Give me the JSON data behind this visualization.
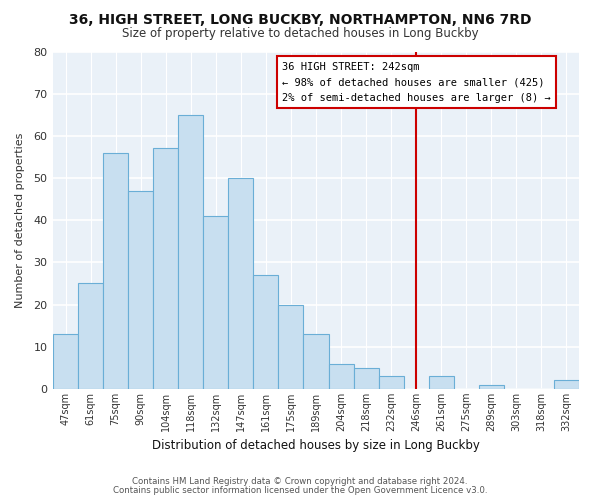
{
  "title": "36, HIGH STREET, LONG BUCKBY, NORTHAMPTON, NN6 7RD",
  "subtitle": "Size of property relative to detached houses in Long Buckby",
  "xlabel": "Distribution of detached houses by size in Long Buckby",
  "ylabel": "Number of detached properties",
  "bar_labels": [
    "47sqm",
    "61sqm",
    "75sqm",
    "90sqm",
    "104sqm",
    "118sqm",
    "132sqm",
    "147sqm",
    "161sqm",
    "175sqm",
    "189sqm",
    "204sqm",
    "218sqm",
    "232sqm",
    "246sqm",
    "261sqm",
    "275sqm",
    "289sqm",
    "303sqm",
    "318sqm",
    "332sqm"
  ],
  "bar_heights": [
    13,
    25,
    56,
    47,
    57,
    65,
    41,
    50,
    27,
    20,
    13,
    6,
    5,
    3,
    0,
    3,
    0,
    1,
    0,
    0,
    2
  ],
  "bar_color": "#c8dff0",
  "bar_edge_color": "#6aaed6",
  "ylim": [
    0,
    80
  ],
  "yticks": [
    0,
    10,
    20,
    30,
    40,
    50,
    60,
    70,
    80
  ],
  "property_line_x": 14.0,
  "property_line_color": "#cc0000",
  "legend_title": "36 HIGH STREET: 242sqm",
  "legend_line1": "← 98% of detached houses are smaller (425)",
  "legend_line2": "2% of semi-detached houses are larger (8) →",
  "footnote1": "Contains HM Land Registry data © Crown copyright and database right 2024.",
  "footnote2": "Contains public sector information licensed under the Open Government Licence v3.0.",
  "bg_color": "#ffffff",
  "plot_bg_color": "#eaf1f8",
  "grid_color": "#ffffff",
  "grid_color_major": "#c8d8e8"
}
